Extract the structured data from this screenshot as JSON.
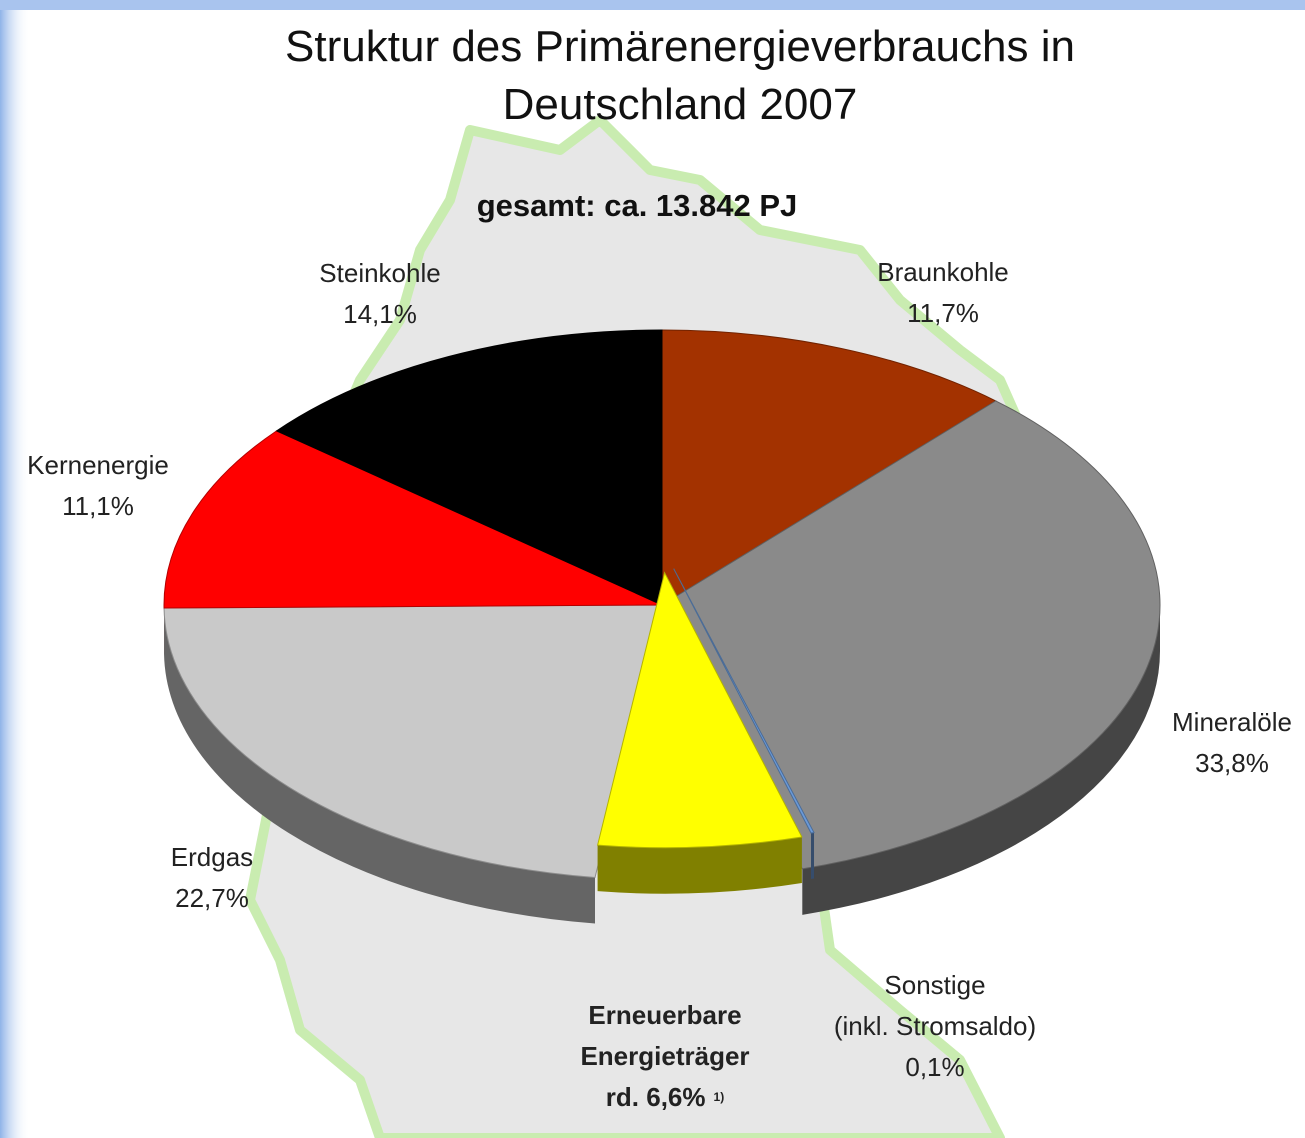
{
  "chart_data": {
    "type": "pie",
    "title": "Struktur des Primärenergieverbrauchs in Deutschland 2007",
    "subtitle": "gesamt: ca. 13.842 PJ",
    "categories": [
      "Braunkohle",
      "Mineralöle",
      "Sonstige\n(inkl. Stromsaldo)",
      "Erneuerbare\nEnergieträger",
      "Erdgas",
      "Kernenergie",
      "Steinkohle"
    ],
    "values": [
      11.7,
      33.8,
      0.1,
      6.6,
      22.7,
      11.1,
      14.1
    ],
    "value_labels": [
      "11,7%",
      "33,8%",
      "0,1%",
      "rd. 6,6%",
      "22,7%",
      "11,1%",
      "14,1%"
    ],
    "footnote": "1)",
    "colors": [
      "#a33200",
      "#8a8a8a",
      "#6b9ad8",
      "#ffff00",
      "#c9c9c9",
      "#ff0000",
      "#000000"
    ]
  }
}
